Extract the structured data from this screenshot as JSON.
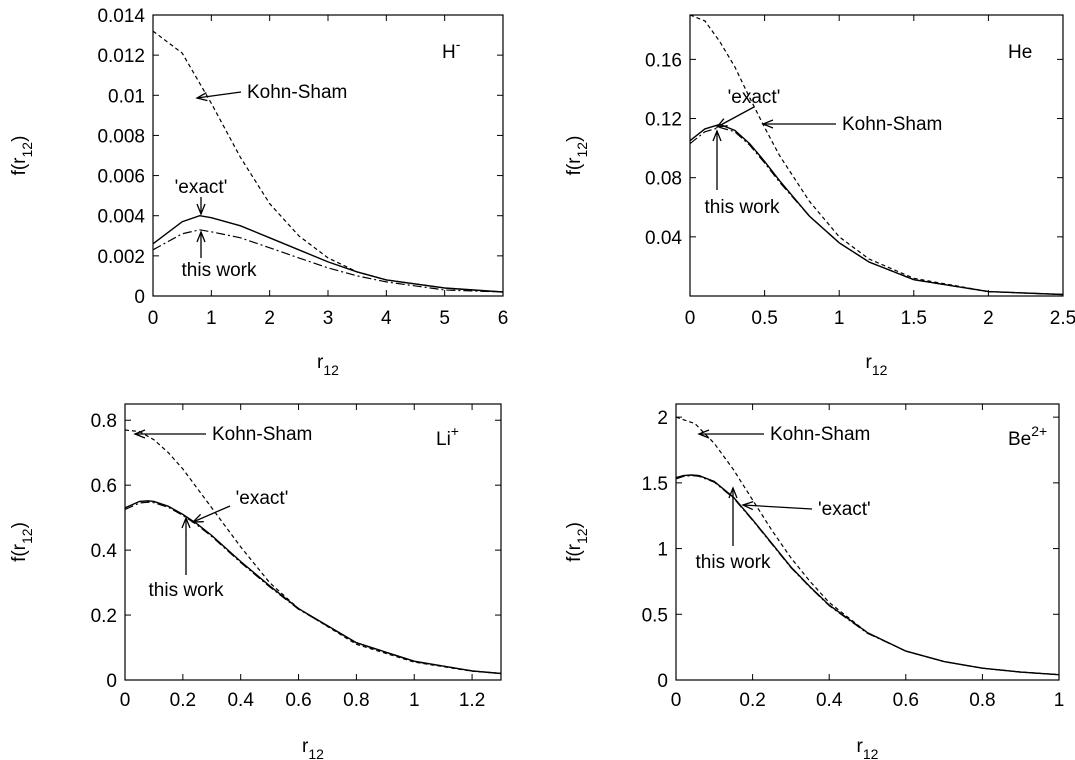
{
  "chart_data": [
    {
      "type": "line",
      "panel_label": "H",
      "panel_label_sup": "-",
      "xlabel": "r",
      "xlabel_sub": "12",
      "ylabel": "f(r",
      "ylabel_sub": "12",
      "ylabel_close": ")",
      "xlim": [
        0,
        6
      ],
      "ylim": [
        0,
        0.014
      ],
      "xticks": [
        0,
        1,
        2,
        3,
        4,
        5,
        6
      ],
      "xtick_labels": [
        "0",
        "1",
        "2",
        "3",
        "4",
        "5",
        "6"
      ],
      "yticks": [
        0,
        0.002,
        0.004,
        0.006,
        0.008,
        0.01,
        0.012,
        0.014
      ],
      "ytick_labels": [
        "0",
        "0.002",
        "0.004",
        "0.006",
        "0.008",
        "0.01",
        "0.012",
        "0.014"
      ],
      "series": [
        {
          "style": "dashed",
          "x": [
            0,
            0.5,
            1,
            1.5,
            2,
            2.5,
            3,
            3.5,
            4,
            5,
            6
          ],
          "y": [
            0.0132,
            0.0121,
            0.0096,
            0.0069,
            0.0046,
            0.003,
            0.0019,
            0.0012,
            0.0008,
            0.0004,
            0.0002
          ]
        },
        {
          "style": "solid",
          "x": [
            0,
            0.5,
            0.8,
            1,
            1.5,
            2,
            2.5,
            3,
            3.5,
            4,
            5,
            6
          ],
          "y": [
            0.0026,
            0.0037,
            0.004,
            0.0039,
            0.0035,
            0.0029,
            0.0023,
            0.0017,
            0.0012,
            0.0008,
            0.0004,
            0.0002
          ]
        },
        {
          "style": "dashdot",
          "x": [
            0,
            0.5,
            0.8,
            1,
            1.5,
            2,
            2.5,
            3,
            3.5,
            4,
            5,
            6
          ],
          "y": [
            0.0023,
            0.0031,
            0.0033,
            0.0032,
            0.0029,
            0.0024,
            0.0019,
            0.0014,
            0.001,
            0.0007,
            0.0003,
            0.0002
          ]
        }
      ],
      "annotations": [
        {
          "text": "Kohn-Sham",
          "x": 0.8,
          "y": 0.0098
        },
        {
          "text": "'exact'",
          "x": 0.8,
          "y": 0.004
        },
        {
          "text": "this work",
          "x": 0.8,
          "y": 0.0033
        }
      ]
    },
    {
      "type": "line",
      "panel_label": "He",
      "panel_label_sup": "",
      "xlabel": "r",
      "xlabel_sub": "12",
      "ylabel": "f(r",
      "ylabel_sub": "12",
      "ylabel_close": ")",
      "xlim": [
        0,
        2.5
      ],
      "ylim": [
        0,
        0.19
      ],
      "xticks": [
        0,
        0.5,
        1,
        1.5,
        2,
        2.5
      ],
      "xtick_labels": [
        "0",
        "0.5",
        "1",
        "1.5",
        "2",
        "2.5"
      ],
      "yticks": [
        0.04,
        0.08,
        0.12,
        0.16
      ],
      "ytick_labels": [
        "0.04",
        "0.08",
        "0.12",
        "0.16"
      ],
      "series": [
        {
          "style": "dashed",
          "x": [
            0,
            0.1,
            0.2,
            0.3,
            0.4,
            0.5,
            0.6,
            0.8,
            1,
            1.2,
            1.5,
            2,
            2.5
          ],
          "y": [
            0.19,
            0.186,
            0.172,
            0.155,
            0.134,
            0.114,
            0.095,
            0.064,
            0.04,
            0.025,
            0.012,
            0.003,
            0.001
          ]
        },
        {
          "style": "solid",
          "x": [
            0,
            0.1,
            0.2,
            0.3,
            0.4,
            0.5,
            0.6,
            0.8,
            1,
            1.2,
            1.5,
            2,
            2.5
          ],
          "y": [
            0.105,
            0.113,
            0.116,
            0.112,
            0.103,
            0.091,
            0.078,
            0.054,
            0.036,
            0.023,
            0.011,
            0.003,
            0.001
          ]
        },
        {
          "style": "dashdot",
          "x": [
            0,
            0.1,
            0.2,
            0.3,
            0.4,
            0.5,
            0.6,
            0.8,
            1,
            1.2,
            1.5,
            2,
            2.5
          ],
          "y": [
            0.103,
            0.111,
            0.114,
            0.111,
            0.102,
            0.09,
            0.077,
            0.054,
            0.036,
            0.023,
            0.011,
            0.003,
            0.001
          ]
        }
      ],
      "annotations": [
        {
          "text": "'exact'",
          "x": 0.2,
          "y": 0.116
        },
        {
          "text": "Kohn-Sham",
          "x": 0.5,
          "y": 0.12
        },
        {
          "text": "this work",
          "x": 0.2,
          "y": 0.114
        }
      ]
    },
    {
      "type": "line",
      "panel_label": "Li",
      "panel_label_sup": "+",
      "xlabel": "r",
      "xlabel_sub": "12",
      "ylabel": "f(r",
      "ylabel_sub": "12",
      "ylabel_close": ")",
      "xlim": [
        0,
        1.3
      ],
      "ylim": [
        0,
        0.85
      ],
      "xticks": [
        0,
        0.2,
        0.4,
        0.6,
        0.8,
        1,
        1.2
      ],
      "xtick_labels": [
        "0",
        "0.2",
        "0.4",
        "0.6",
        "0.8",
        "1",
        "1.2"
      ],
      "yticks": [
        0,
        0.2,
        0.4,
        0.6,
        0.8
      ],
      "ytick_labels": [
        "0",
        "0.2",
        "0.4",
        "0.6",
        "0.8"
      ],
      "series": [
        {
          "style": "dashed",
          "x": [
            0,
            0.05,
            0.1,
            0.15,
            0.2,
            0.25,
            0.3,
            0.35,
            0.4,
            0.5,
            0.6,
            0.8,
            1,
            1.2,
            1.3
          ],
          "y": [
            0.77,
            0.765,
            0.74,
            0.7,
            0.65,
            0.59,
            0.53,
            0.47,
            0.41,
            0.3,
            0.22,
            0.11,
            0.055,
            0.027,
            0.02
          ]
        },
        {
          "style": "solid",
          "x": [
            0,
            0.05,
            0.08,
            0.1,
            0.15,
            0.2,
            0.25,
            0.3,
            0.35,
            0.4,
            0.5,
            0.6,
            0.8,
            1,
            1.2,
            1.3
          ],
          "y": [
            0.53,
            0.55,
            0.552,
            0.55,
            0.535,
            0.51,
            0.48,
            0.445,
            0.405,
            0.365,
            0.29,
            0.22,
            0.115,
            0.058,
            0.028,
            0.02
          ]
        },
        {
          "style": "dashdot",
          "x": [
            0,
            0.05,
            0.08,
            0.1,
            0.15,
            0.2,
            0.25,
            0.3,
            0.35,
            0.4,
            0.5,
            0.6,
            0.8,
            1,
            1.2,
            1.3
          ],
          "y": [
            0.525,
            0.545,
            0.548,
            0.546,
            0.532,
            0.507,
            0.477,
            0.442,
            0.402,
            0.362,
            0.287,
            0.218,
            0.114,
            0.057,
            0.028,
            0.02
          ]
        }
      ],
      "annotations": [
        {
          "text": "Kohn-Sham",
          "x": 0.05,
          "y": 0.765
        },
        {
          "text": "'exact'",
          "x": 0.25,
          "y": 0.49
        },
        {
          "text": "this work",
          "x": 0.21,
          "y": 0.5
        }
      ]
    },
    {
      "type": "line",
      "panel_label": "Be",
      "panel_label_sup": "2+",
      "xlabel": "r",
      "xlabel_sub": "12",
      "ylabel": "f(r",
      "ylabel_sub": "12",
      "ylabel_close": ")",
      "xlim": [
        0,
        1
      ],
      "ylim": [
        0,
        2.1
      ],
      "xticks": [
        0,
        0.2,
        0.4,
        0.6,
        0.8,
        1
      ],
      "xtick_labels": [
        "0",
        "0.2",
        "0.4",
        "0.6",
        "0.8",
        "1"
      ],
      "yticks": [
        0,
        0.5,
        1,
        1.5,
        2
      ],
      "ytick_labels": [
        "0",
        "0.5",
        "1",
        "1.5",
        "2"
      ],
      "series": [
        {
          "style": "dashed",
          "x": [
            0,
            0.05,
            0.1,
            0.15,
            0.2,
            0.25,
            0.3,
            0.35,
            0.4,
            0.5,
            0.6,
            0.7,
            0.8,
            0.9,
            1
          ],
          "y": [
            2.0,
            1.95,
            1.8,
            1.6,
            1.37,
            1.14,
            0.93,
            0.75,
            0.59,
            0.36,
            0.22,
            0.14,
            0.09,
            0.06,
            0.04
          ]
        },
        {
          "style": "solid",
          "x": [
            0,
            0.02,
            0.04,
            0.06,
            0.1,
            0.15,
            0.2,
            0.25,
            0.3,
            0.35,
            0.4,
            0.5,
            0.6,
            0.7,
            0.8,
            0.9,
            1
          ],
          "y": [
            1.54,
            1.555,
            1.56,
            1.555,
            1.51,
            1.39,
            1.22,
            1.04,
            0.86,
            0.71,
            0.57,
            0.36,
            0.22,
            0.14,
            0.09,
            0.06,
            0.04
          ]
        },
        {
          "style": "dashdot",
          "x": [
            0,
            0.02,
            0.04,
            0.06,
            0.1,
            0.15,
            0.2,
            0.25,
            0.3,
            0.35,
            0.4,
            0.5,
            0.6,
            0.7,
            0.8,
            0.9,
            1
          ],
          "y": [
            1.53,
            1.55,
            1.555,
            1.55,
            1.505,
            1.385,
            1.215,
            1.035,
            0.855,
            0.705,
            0.565,
            0.355,
            0.22,
            0.14,
            0.09,
            0.06,
            0.04
          ]
        }
      ],
      "annotations": [
        {
          "text": "Kohn-Sham",
          "x": 0.08,
          "y": 1.9
        },
        {
          "text": "'exact'",
          "x": 0.18,
          "y": 1.3
        },
        {
          "text": "this work",
          "x": 0.15,
          "y": 1.38
        }
      ]
    }
  ]
}
